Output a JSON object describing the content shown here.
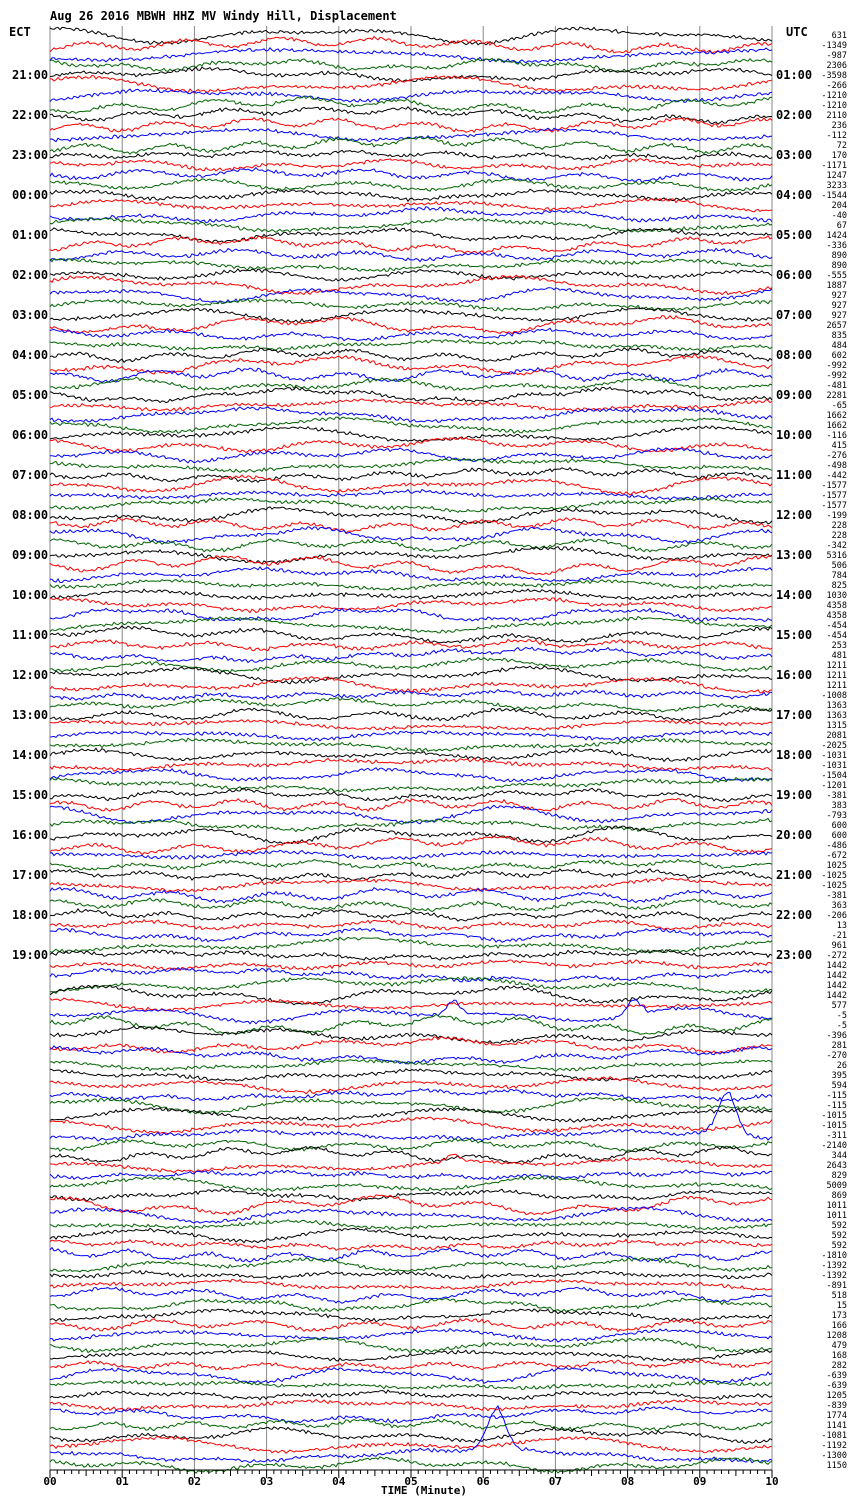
{
  "title": "Aug 26 2016 MBWH HHZ MV Windy Hill, Displacement",
  "left_tz": "ECT",
  "right_tz": "UTC",
  "xlabel": "TIME (Minute)",
  "colors": {
    "trace_cycle": [
      "#000000",
      "#ff0000",
      "#0000ff",
      "#006400"
    ],
    "grid": "#888888",
    "axis": "#000000"
  },
  "chart_data": {
    "type": "line",
    "x_ticks": [
      "00",
      "01",
      "02",
      "03",
      "04",
      "05",
      "06",
      "07",
      "08",
      "09",
      "10"
    ],
    "xlim": [
      0,
      10
    ],
    "left_hour_labels": [
      "21:00",
      "22:00",
      "23:00",
      "00:00",
      "01:00",
      "02:00",
      "03:00",
      "04:00",
      "05:00",
      "06:00",
      "07:00",
      "08:00",
      "09:00",
      "10:00",
      "11:00",
      "12:00",
      "13:00",
      "14:00",
      "15:00",
      "16:00",
      "17:00",
      "18:00",
      "19:00"
    ],
    "right_hour_labels": [
      "01:00",
      "02:00",
      "03:00",
      "04:00",
      "05:00",
      "06:00",
      "07:00",
      "08:00",
      "09:00",
      "10:00",
      "11:00",
      "12:00",
      "13:00",
      "14:00",
      "15:00",
      "16:00",
      "17:00",
      "18:00",
      "19:00",
      "20:00",
      "21:00",
      "22:00",
      "23:00"
    ],
    "trace_offsets": [
      "631",
      "-1349",
      "-987",
      "2306",
      "-3598",
      "-266",
      "-1210",
      "-1210",
      "2110",
      "236",
      "-112",
      "72",
      "170",
      "-1171",
      "1247",
      "3233",
      "-1544",
      "204",
      "-40",
      "67",
      "1424",
      "-336",
      "890",
      "890",
      "-555",
      "1887",
      "927",
      "927",
      "927",
      "2657",
      "835",
      "484",
      "602",
      "-992",
      "-992",
      "-481",
      "2281",
      "-65",
      "1662",
      "1662",
      "-116",
      "415",
      "-276",
      "-498",
      "-442",
      "-1577",
      "-1577",
      "-1577",
      "-199",
      "228",
      "228",
      "-342",
      "5316",
      "506",
      "784",
      "825",
      "1030",
      "4358",
      "4358",
      "-454",
      "-454",
      "253",
      "481",
      "1211",
      "1211",
      "1211",
      "-1008",
      "1363",
      "1363",
      "1315",
      "2081",
      "-2025",
      "-1031",
      "-1031",
      "-1504",
      "-1201",
      "-381",
      "383",
      "-793",
      "600",
      "600",
      "-486",
      "-672",
      "1025",
      "-1025",
      "-1025",
      "-381",
      "363",
      "-206",
      "13",
      "-21",
      "961",
      "-272",
      "1442",
      "1442",
      "1442",
      "1442",
      "577",
      "-5",
      "-5",
      "-396",
      "281",
      "-270",
      "26",
      "395",
      "594",
      "-115",
      "-115",
      "-1015",
      "-1015",
      "-311",
      "-2140",
      "344",
      "2643",
      "829",
      "5009",
      "869",
      "1011",
      "1011",
      "592",
      "592",
      "592",
      "-1810",
      "-1392",
      "-1392",
      "-891",
      "518",
      "15",
      "173",
      "166",
      "1208",
      "479",
      "168",
      "282",
      "-639",
      "-639",
      "1205",
      "-839",
      "1774",
      "1141",
      "-1081",
      "-1192",
      "-1300",
      "1150"
    ],
    "events": [
      {
        "line": 98,
        "minute": 5.6,
        "amplitude": "medium"
      },
      {
        "line": 98,
        "minute": 8.1,
        "amplitude": "medium"
      },
      {
        "line": 110,
        "minute": 9.4,
        "amplitude": "large"
      },
      {
        "line": 113,
        "minute": 5.6,
        "amplitude": "small"
      },
      {
        "line": 142,
        "minute": 6.2,
        "amplitude": "large"
      }
    ]
  }
}
